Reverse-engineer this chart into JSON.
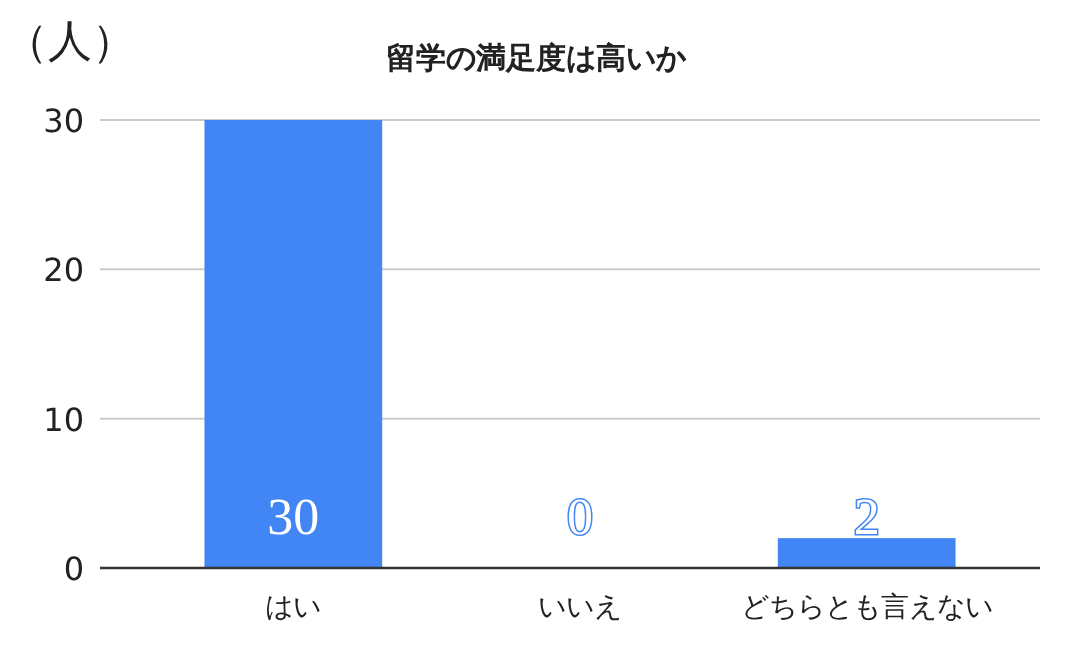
{
  "chart_data": {
    "type": "bar",
    "title": "留学の満足度は高いか",
    "ylabel": "（人）",
    "categories": [
      "はい",
      "いいえ",
      "どちらとも言えない"
    ],
    "values": [
      30,
      0,
      2
    ],
    "color": "#4285f4",
    "ylim": [
      0,
      30
    ],
    "yticks": [
      0,
      10,
      20,
      30
    ],
    "grid": "y",
    "data_labels": true
  }
}
